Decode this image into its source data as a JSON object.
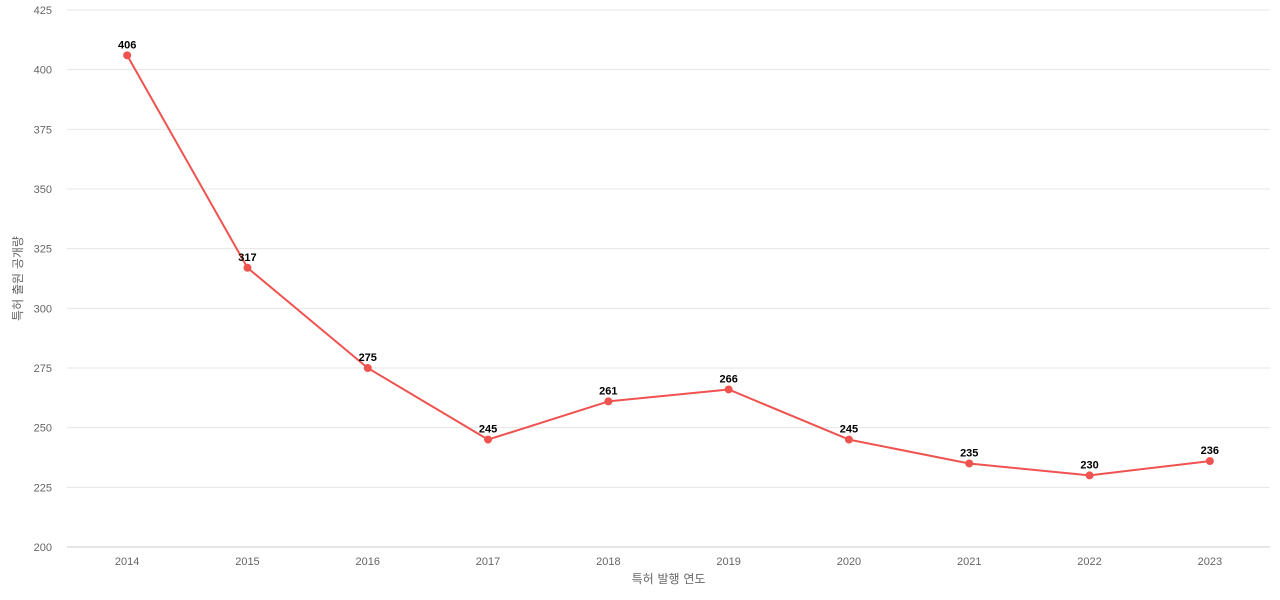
{
  "chart_data": {
    "type": "line",
    "title": "",
    "xlabel": "특허 발행 연도",
    "ylabel": "특허 출원 공개량",
    "categories": [
      "2014",
      "2015",
      "2016",
      "2017",
      "2018",
      "2019",
      "2020",
      "2021",
      "2022",
      "2023"
    ],
    "series": [
      {
        "values": [
          406,
          317,
          275,
          245,
          261,
          266,
          245,
          235,
          230,
          236
        ],
        "color": "#ef5350"
      }
    ],
    "ylim": [
      200,
      425
    ],
    "yticks": [
      200,
      225,
      250,
      275,
      300,
      325,
      350,
      375,
      400,
      425
    ],
    "grid": true,
    "legend": "none",
    "data_labels": true
  }
}
